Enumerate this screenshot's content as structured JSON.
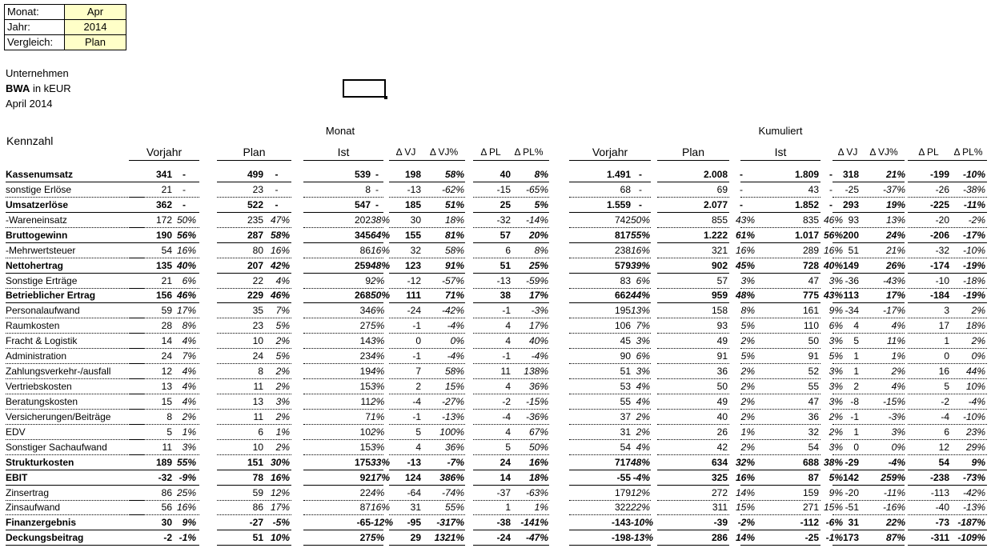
{
  "params": [
    {
      "label": "Monat:",
      "value": "Apr"
    },
    {
      "label": "Jahr:",
      "value": "2014"
    },
    {
      "label": "Vergleich:",
      "value": "Plan"
    }
  ],
  "report": {
    "company": "Unternehmen",
    "title_bold": "BWA",
    "title_rest": " in kEUR",
    "period": "April 2014"
  },
  "groups": {
    "monat": "Monat",
    "kumuliert": "Kumuliert"
  },
  "row_header": "Kennzahl",
  "columns": {
    "vorjahr": "Vorjahr",
    "plan": "Plan",
    "ist": "Ist",
    "dvj": "Δ VJ",
    "dvjp": "Δ VJ%",
    "dpl": "Δ PL",
    "dplp": "Δ PL%"
  },
  "rows": [
    {
      "label": "Kassenumsatz",
      "bold": true,
      "m": [
        "341",
        "-",
        "499",
        "-",
        "539",
        "-",
        "198",
        "58%",
        "40",
        "8%"
      ],
      "k": [
        "1.491",
        "-",
        "2.008",
        "-",
        "1.809",
        "-",
        "318",
        "21%",
        "-199",
        "-10%"
      ]
    },
    {
      "label": "sonstige Erlöse",
      "bold": false,
      "m": [
        "21",
        "-",
        "23",
        "-",
        "8",
        "-",
        "-13",
        "-62%",
        "-15",
        "-65%"
      ],
      "k": [
        "68",
        "-",
        "69",
        "-",
        "43",
        "-",
        "-25",
        "-37%",
        "-26",
        "-38%"
      ]
    },
    {
      "label": "Umsatzerlöse",
      "bold": true,
      "m": [
        "362",
        "-",
        "522",
        "-",
        "547",
        "-",
        "185",
        "51%",
        "25",
        "5%"
      ],
      "k": [
        "1.559",
        "-",
        "2.077",
        "-",
        "1.852",
        "-",
        "293",
        "19%",
        "-225",
        "-11%"
      ]
    },
    {
      "label": " -Wareneinsatz",
      "bold": false,
      "m": [
        "172",
        "50%",
        "235",
        "47%",
        "202",
        "38%",
        "30",
        "18%",
        "-32",
        "-14%"
      ],
      "k": [
        "742",
        "50%",
        "855",
        "43%",
        "835",
        "46%",
        "93",
        "13%",
        "-20",
        "-2%"
      ]
    },
    {
      "label": "Bruttogewinn",
      "bold": true,
      "m": [
        "190",
        "56%",
        "287",
        "58%",
        "345",
        "64%",
        "155",
        "81%",
        "57",
        "20%"
      ],
      "k": [
        "817",
        "55%",
        "1.222",
        "61%",
        "1.017",
        "56%",
        "200",
        "24%",
        "-206",
        "-17%"
      ]
    },
    {
      "label": " -Mehrwertsteuer",
      "bold": false,
      "m": [
        "54",
        "16%",
        "80",
        "16%",
        "86",
        "16%",
        "32",
        "58%",
        "6",
        "8%"
      ],
      "k": [
        "238",
        "16%",
        "321",
        "16%",
        "289",
        "16%",
        "51",
        "21%",
        "-32",
        "-10%"
      ]
    },
    {
      "label": "Nettohertrag",
      "bold": true,
      "m": [
        "135",
        "40%",
        "207",
        "42%",
        "259",
        "48%",
        "123",
        "91%",
        "51",
        "25%"
      ],
      "k": [
        "579",
        "39%",
        "902",
        "45%",
        "728",
        "40%",
        "149",
        "26%",
        "-174",
        "-19%"
      ]
    },
    {
      "label": "Sonstige Erträge",
      "bold": false,
      "m": [
        "21",
        "6%",
        "22",
        "4%",
        "9",
        "2%",
        "-12",
        "-57%",
        "-13",
        "-59%"
      ],
      "k": [
        "83",
        "6%",
        "57",
        "3%",
        "47",
        "3%",
        "-36",
        "-43%",
        "-10",
        "-18%"
      ]
    },
    {
      "label": "Betrieblicher Ertrag",
      "bold": true,
      "m": [
        "156",
        "46%",
        "229",
        "46%",
        "268",
        "50%",
        "111",
        "71%",
        "38",
        "17%"
      ],
      "k": [
        "662",
        "44%",
        "959",
        "48%",
        "775",
        "43%",
        "113",
        "17%",
        "-184",
        "-19%"
      ]
    },
    {
      "label": "Personalaufwand",
      "bold": false,
      "m": [
        "59",
        "17%",
        "35",
        "7%",
        "34",
        "6%",
        "-24",
        "-42%",
        "-1",
        "-3%"
      ],
      "k": [
        "195",
        "13%",
        "158",
        "8%",
        "161",
        "9%",
        "-34",
        "-17%",
        "3",
        "2%"
      ]
    },
    {
      "label": "Raumkosten",
      "bold": false,
      "m": [
        "28",
        "8%",
        "23",
        "5%",
        "27",
        "5%",
        "-1",
        "-4%",
        "4",
        "17%"
      ],
      "k": [
        "106",
        "7%",
        "93",
        "5%",
        "110",
        "6%",
        "4",
        "4%",
        "17",
        "18%"
      ]
    },
    {
      "label": "Fracht & Logistik",
      "bold": false,
      "m": [
        "14",
        "4%",
        "10",
        "2%",
        "14",
        "3%",
        "0",
        "0%",
        "4",
        "40%"
      ],
      "k": [
        "45",
        "3%",
        "49",
        "2%",
        "50",
        "3%",
        "5",
        "11%",
        "1",
        "2%"
      ]
    },
    {
      "label": "Administration",
      "bold": false,
      "m": [
        "24",
        "7%",
        "24",
        "5%",
        "23",
        "4%",
        "-1",
        "-4%",
        "-1",
        "-4%"
      ],
      "k": [
        "90",
        "6%",
        "91",
        "5%",
        "91",
        "5%",
        "1",
        "1%",
        "0",
        "0%"
      ]
    },
    {
      "label": "Zahlungsverkehr-/ausfall",
      "bold": false,
      "m": [
        "12",
        "4%",
        "8",
        "2%",
        "19",
        "4%",
        "7",
        "58%",
        "11",
        "138%"
      ],
      "k": [
        "51",
        "3%",
        "36",
        "2%",
        "52",
        "3%",
        "1",
        "2%",
        "16",
        "44%"
      ]
    },
    {
      "label": "Vertriebskosten",
      "bold": false,
      "m": [
        "13",
        "4%",
        "11",
        "2%",
        "15",
        "3%",
        "2",
        "15%",
        "4",
        "36%"
      ],
      "k": [
        "53",
        "4%",
        "50",
        "2%",
        "55",
        "3%",
        "2",
        "4%",
        "5",
        "10%"
      ]
    },
    {
      "label": "Beratungskosten",
      "bold": false,
      "m": [
        "15",
        "4%",
        "13",
        "3%",
        "11",
        "2%",
        "-4",
        "-27%",
        "-2",
        "-15%"
      ],
      "k": [
        "55",
        "4%",
        "49",
        "2%",
        "47",
        "3%",
        "-8",
        "-15%",
        "-2",
        "-4%"
      ]
    },
    {
      "label": "Versicherungen/Beiträge",
      "bold": false,
      "m": [
        "8",
        "2%",
        "11",
        "2%",
        "7",
        "1%",
        "-1",
        "-13%",
        "-4",
        "-36%"
      ],
      "k": [
        "37",
        "2%",
        "40",
        "2%",
        "36",
        "2%",
        "-1",
        "-3%",
        "-4",
        "-10%"
      ]
    },
    {
      "label": "EDV",
      "bold": false,
      "m": [
        "5",
        "1%",
        "6",
        "1%",
        "10",
        "2%",
        "5",
        "100%",
        "4",
        "67%"
      ],
      "k": [
        "31",
        "2%",
        "26",
        "1%",
        "32",
        "2%",
        "1",
        "3%",
        "6",
        "23%"
      ]
    },
    {
      "label": "Sonstiger Sachaufwand",
      "bold": false,
      "m": [
        "11",
        "3%",
        "10",
        "2%",
        "15",
        "3%",
        "4",
        "36%",
        "5",
        "50%"
      ],
      "k": [
        "54",
        "4%",
        "42",
        "2%",
        "54",
        "3%",
        "0",
        "0%",
        "12",
        "29%"
      ]
    },
    {
      "label": "Strukturkosten",
      "bold": true,
      "m": [
        "189",
        "55%",
        "151",
        "30%",
        "175",
        "33%",
        "-13",
        "-7%",
        "24",
        "16%"
      ],
      "k": [
        "717",
        "48%",
        "634",
        "32%",
        "688",
        "38%",
        "-29",
        "-4%",
        "54",
        "9%"
      ]
    },
    {
      "label": "EBIT",
      "bold": true,
      "m": [
        "-32",
        "-9%",
        "78",
        "16%",
        "92",
        "17%",
        "124",
        "386%",
        "14",
        "18%"
      ],
      "k": [
        "-55",
        "-4%",
        "325",
        "16%",
        "87",
        "5%",
        "142",
        "259%",
        "-238",
        "-73%"
      ]
    },
    {
      "label": "Zinsertrag",
      "bold": false,
      "m": [
        "86",
        "25%",
        "59",
        "12%",
        "22",
        "4%",
        "-64",
        "-74%",
        "-37",
        "-63%"
      ],
      "k": [
        "179",
        "12%",
        "272",
        "14%",
        "159",
        "9%",
        "-20",
        "-11%",
        "-113",
        "-42%"
      ]
    },
    {
      "label": "Zinsaufwand",
      "bold": false,
      "m": [
        "56",
        "16%",
        "86",
        "17%",
        "87",
        "16%",
        "31",
        "55%",
        "1",
        "1%"
      ],
      "k": [
        "322",
        "22%",
        "311",
        "15%",
        "271",
        "15%",
        "-51",
        "-16%",
        "-40",
        "-13%"
      ]
    },
    {
      "label": "Finanzergebnis",
      "bold": true,
      "m": [
        "30",
        "9%",
        "-27",
        "-5%",
        "-65",
        "-12%",
        "-95",
        "-317%",
        "-38",
        "-141%"
      ],
      "k": [
        "-143",
        "-10%",
        "-39",
        "-2%",
        "-112",
        "-6%",
        "31",
        "22%",
        "-73",
        "-187%"
      ]
    },
    {
      "label": "Deckungsbeitrag",
      "bold": true,
      "m": [
        "-2",
        "-1%",
        "51",
        "10%",
        "27",
        "5%",
        "29",
        "1321%",
        "-24",
        "-47%"
      ],
      "k": [
        "-198",
        "-13%",
        "286",
        "14%",
        "-25",
        "-1%",
        "173",
        "87%",
        "-311",
        "-109%"
      ]
    }
  ]
}
